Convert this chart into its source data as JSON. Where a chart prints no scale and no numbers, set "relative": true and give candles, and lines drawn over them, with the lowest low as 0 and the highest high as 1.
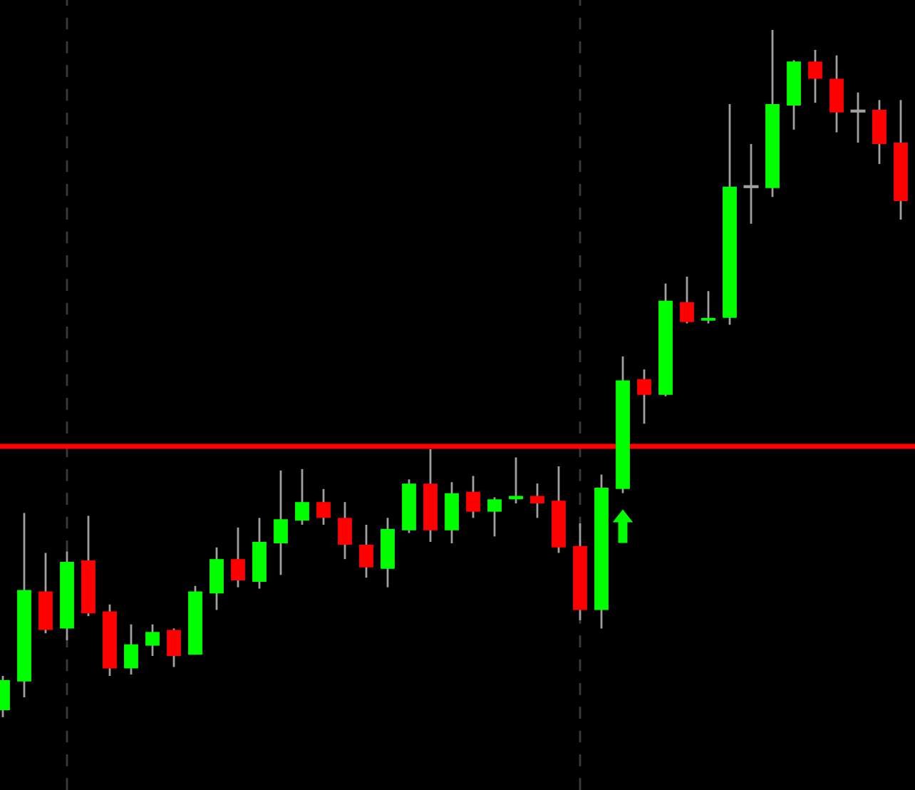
{
  "chart_data": {
    "type": "candlestick",
    "relative": true,
    "categories": [
      null,
      null,
      null,
      null,
      null,
      null,
      null,
      null,
      null,
      null,
      null,
      null,
      null,
      null,
      null,
      null,
      null,
      null,
      null,
      null,
      null,
      null,
      null,
      null,
      null,
      null,
      null,
      null,
      null,
      null,
      null,
      null,
      null,
      null,
      null,
      null,
      null,
      null,
      null,
      null,
      null,
      null,
      null
    ],
    "ohlc": [
      [
        0.01,
        0.06,
        0,
        0.054
      ],
      [
        0.052,
        0.297,
        0.029,
        0.185
      ],
      [
        0.183,
        0.239,
        0.122,
        0.127
      ],
      [
        0.129,
        0.241,
        0.112,
        0.226
      ],
      [
        0.228,
        0.293,
        0.147,
        0.151
      ],
      [
        0.154,
        0.164,
        0.06,
        0.071
      ],
      [
        0.071,
        0.135,
        0.062,
        0.106
      ],
      [
        0.104,
        0.135,
        0.089,
        0.124
      ],
      [
        0.127,
        0.129,
        0.073,
        0.089
      ],
      [
        0.091,
        0.191,
        0.091,
        0.183
      ],
      [
        0.18,
        0.247,
        0.156,
        0.23
      ],
      [
        0.23,
        0.276,
        0.189,
        0.199
      ],
      [
        0.197,
        0.29,
        0.187,
        0.255
      ],
      [
        0.253,
        0.359,
        0.207,
        0.288
      ],
      [
        0.286,
        0.361,
        0.28,
        0.313
      ],
      [
        0.313,
        0.332,
        0.28,
        0.29
      ],
      [
        0.29,
        0.313,
        0.23,
        0.251
      ],
      [
        0.251,
        0.28,
        0.203,
        0.218
      ],
      [
        0.216,
        0.29,
        0.189,
        0.274
      ],
      [
        0.272,
        0.346,
        0.268,
        0.34
      ],
      [
        0.34,
        0.39,
        0.255,
        0.272
      ],
      [
        0.272,
        0.342,
        0.253,
        0.326
      ],
      [
        0.328,
        0.351,
        0.29,
        0.299
      ],
      [
        0.299,
        0.32,
        0.263,
        0.317
      ],
      [
        0.317,
        0.378,
        0.311,
        0.322
      ],
      [
        0.322,
        0.34,
        0.29,
        0.311
      ],
      [
        0.315,
        0.365,
        0.239,
        0.247
      ],
      [
        0.249,
        0.282,
        0.141,
        0.156
      ],
      [
        0.156,
        0.353,
        0.129,
        0.334
      ],
      [
        0.332,
        0.525,
        0.326,
        0.49
      ],
      [
        0.492,
        0.506,
        0.427,
        0.469
      ],
      [
        0.469,
        0.631,
        0.467,
        0.606
      ],
      [
        0.604,
        0.641,
        0.573,
        0.575
      ],
      [
        0.577,
        0.62,
        0.573,
        0.581
      ],
      [
        0.581,
        0.892,
        0.571,
        0.772
      ],
      [
        0.772,
        0.834,
        0.718,
        0.772
      ],
      [
        0.77,
        1,
        0.757,
        0.892
      ],
      [
        0.89,
        0.956,
        0.855,
        0.954
      ],
      [
        0.954,
        0.971,
        0.894,
        0.929
      ],
      [
        0.929,
        0.963,
        0.851,
        0.88
      ],
      [
        0.882,
        0.909,
        0.836,
        0.882
      ],
      [
        0.884,
        0.898,
        0.805,
        0.834
      ],
      [
        0.836,
        0.898,
        0.724,
        0.751
      ]
    ],
    "colors": [
      "#00ff00",
      "#00ff00",
      "#ff0000",
      "#00ff00",
      "#ff0000",
      "#ff0000",
      "#00ff00",
      "#00ff00",
      "#ff0000",
      "#00ff00",
      "#00ff00",
      "#ff0000",
      "#00ff00",
      "#00ff00",
      "#00ff00",
      "#ff0000",
      "#ff0000",
      "#ff0000",
      "#00ff00",
      "#00ff00",
      "#ff0000",
      "#00ff00",
      "#ff0000",
      "#00ff00",
      "#00ff00",
      "#ff0000",
      "#ff0000",
      "#ff0000",
      "#00ff00",
      "#00ff00",
      "#ff0000",
      "#00ff00",
      "#ff0000",
      "#00ff00",
      "#00ff00",
      "#a0a0a0",
      "#00ff00",
      "#00ff00",
      "#ff0000",
      "#ff0000",
      "#a0a0a0",
      "#ff0000",
      "#ff0000"
    ],
    "ref_lines": [
      {
        "axis": "y",
        "value": 0.394,
        "color": "#ff0000",
        "line_style": "solid"
      }
    ]
  }
}
